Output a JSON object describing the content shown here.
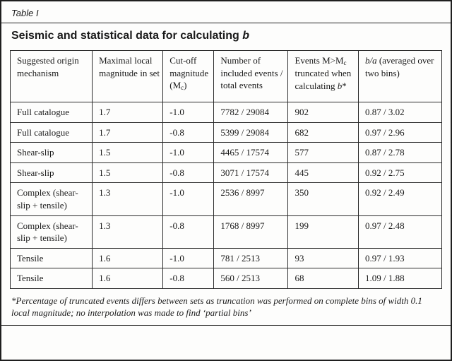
{
  "table": {
    "label": "Table I",
    "title_prefix": "Seismic and statistical data for calculating ",
    "title_italic": "b",
    "headers": {
      "col1": "Suggested origin mechanism",
      "col2": "Maximal local magnitude in set",
      "col3_pre": "Cut-off magnitude (M",
      "col3_sub": "c",
      "col3_post": ")",
      "col4": "Number of included events / total events",
      "col5_pre": "Events M>M",
      "col5_sub": "c",
      "col5_mid": " truncated when calculating ",
      "col5_italic": "b",
      "col5_post": "*",
      "col6_italic": "b/a",
      "col6_post": " (averaged over two bins)"
    },
    "rows": [
      {
        "mechanism": "Full catalogue",
        "max_local_magnitude": "1.7",
        "cutoff_magnitude": "-1.0",
        "included_total_events": "7782 / 29084",
        "truncated_events": "902",
        "b_a": "0.87 / 3.02"
      },
      {
        "mechanism": "Full catalogue",
        "max_local_magnitude": "1.7",
        "cutoff_magnitude": "-0.8",
        "included_total_events": "5399 / 29084",
        "truncated_events": "682",
        "b_a": "0.97 / 2.96"
      },
      {
        "mechanism": "Shear-slip",
        "max_local_magnitude": "1.5",
        "cutoff_magnitude": "-1.0",
        "included_total_events": "4465 / 17574",
        "truncated_events": "577",
        "b_a": "0.87 / 2.78"
      },
      {
        "mechanism": "Shear-slip",
        "max_local_magnitude": "1.5",
        "cutoff_magnitude": "-0.8",
        "included_total_events": "3071 / 17574",
        "truncated_events": "445",
        "b_a": "0.92 / 2.75"
      },
      {
        "mechanism": "Complex (shear-slip + tensile)",
        "max_local_magnitude": "1.3",
        "cutoff_magnitude": "-1.0",
        "included_total_events": "2536 / 8997",
        "truncated_events": "350",
        "b_a": "0.92 / 2.49"
      },
      {
        "mechanism": "Complex (shear-slip + tensile)",
        "max_local_magnitude": "1.3",
        "cutoff_magnitude": "-0.8",
        "included_total_events": "1768 / 8997",
        "truncated_events": "199",
        "b_a": "0.97 / 2.48"
      },
      {
        "mechanism": "Tensile",
        "max_local_magnitude": "1.6",
        "cutoff_magnitude": "-1.0",
        "included_total_events": "781 / 2513",
        "truncated_events": "93",
        "b_a": "0.97 / 1.93"
      },
      {
        "mechanism": "Tensile",
        "max_local_magnitude": "1.6",
        "cutoff_magnitude": "-0.8",
        "included_total_events": "560 / 2513",
        "truncated_events": "68",
        "b_a": "1.09 / 1.88"
      }
    ],
    "footnote": "*Percentage of truncated events differs between sets as truncation was performed on complete bins of width 0.1 local magnitude; no interpolation was made to find ‘partial bins’"
  }
}
